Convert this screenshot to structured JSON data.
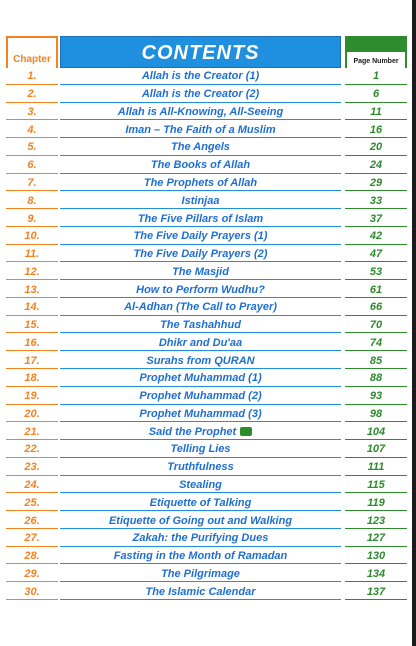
{
  "header": {
    "chapter_label": "Chapter",
    "title": "CONTENTS",
    "page_label": "Page Number"
  },
  "colors": {
    "chapter": "#f5821f",
    "title": "#1f6fd1",
    "header_blue": "#1f8fe0",
    "page": "#2e8b2e"
  },
  "entries": [
    {
      "num": "1.",
      "title": "Allah is the Creator (1)",
      "page": "1"
    },
    {
      "num": "2.",
      "title": "Allah is the Creator (2)",
      "page": "6"
    },
    {
      "num": "3.",
      "title": "Allah is All-Knowing, All-Seeing",
      "page": "11"
    },
    {
      "num": "4.",
      "title": "Iman – The Faith of a Muslim",
      "page": "16"
    },
    {
      "num": "5.",
      "title": "The Angels",
      "page": "20"
    },
    {
      "num": "6.",
      "title": "The Books of Allah",
      "page": "24"
    },
    {
      "num": "7.",
      "title": "The Prophets of Allah",
      "page": "29"
    },
    {
      "num": "8.",
      "title": "Istinjaa",
      "page": "33"
    },
    {
      "num": "9.",
      "title": "The Five Pillars of Islam",
      "page": "37"
    },
    {
      "num": "10.",
      "title": "The Five Daily Prayers (1)",
      "page": "42"
    },
    {
      "num": "11.",
      "title": "The Five Daily Prayers (2)",
      "page": "47"
    },
    {
      "num": "12.",
      "title": "The Masjid",
      "page": "53"
    },
    {
      "num": "13.",
      "title": "How to Perform Wudhu?",
      "page": "61"
    },
    {
      "num": "14.",
      "title": "Al-Adhan (The Call to Prayer)",
      "page": "66"
    },
    {
      "num": "15.",
      "title": "The Tashahhud",
      "page": "70"
    },
    {
      "num": "16.",
      "title": "Dhikr and Du'aa",
      "page": "74"
    },
    {
      "num": "17.",
      "title": "Surahs from QURAN",
      "page": "85"
    },
    {
      "num": "18.",
      "title": "Prophet Muhammad (1)",
      "page": "88"
    },
    {
      "num": "19.",
      "title": "Prophet Muhammad (2)",
      "page": "93"
    },
    {
      "num": "20.",
      "title": "Prophet Muhammad (3)",
      "page": "98"
    },
    {
      "num": "21.",
      "title": "Said the Prophet",
      "page": "104",
      "seal": true
    },
    {
      "num": "22.",
      "title": "Telling Lies",
      "page": "107"
    },
    {
      "num": "23.",
      "title": "Truthfulness",
      "page": "111"
    },
    {
      "num": "24.",
      "title": "Stealing",
      "page": "115"
    },
    {
      "num": "25.",
      "title": "Etiquette of Talking",
      "page": "119"
    },
    {
      "num": "26.",
      "title": "Etiquette of Going out and Walking",
      "page": "123"
    },
    {
      "num": "27.",
      "title": "Zakah: the Purifying Dues",
      "page": "127"
    },
    {
      "num": "28.",
      "title": "Fasting in the Month of Ramadan",
      "page": "130"
    },
    {
      "num": "29.",
      "title": "The Pilgrimage",
      "page": "134"
    },
    {
      "num": "30.",
      "title": "The Islamic Calendar",
      "page": "137"
    }
  ]
}
